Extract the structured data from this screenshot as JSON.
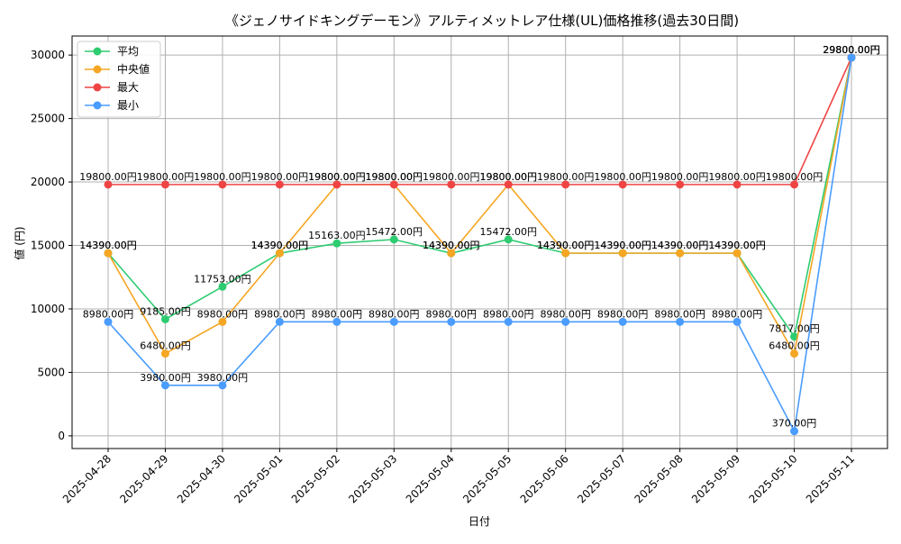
{
  "chart_data": {
    "type": "line",
    "title": "《ジェノサイドキングデーモン》アルティメットレア仕様(UL)価格推移(過去30日間)",
    "xlabel": "日付",
    "ylabel": "値 (円)",
    "ylim": [
      -1000,
      31500
    ],
    "yticks": [
      0,
      5000,
      10000,
      15000,
      20000,
      25000,
      30000
    ],
    "grid": true,
    "legend_position": "top-left",
    "categories": [
      "2025-04-28",
      "2025-04-29",
      "2025-04-30",
      "2025-05-01",
      "2025-05-02",
      "2025-05-03",
      "2025-05-04",
      "2025-05-05",
      "2025-05-06",
      "2025-05-07",
      "2025-05-08",
      "2025-05-09",
      "2025-05-10",
      "2025-05-11"
    ],
    "series": [
      {
        "name": "平均",
        "color": "#2ecc71",
        "values": [
          14390,
          9185,
          11753,
          14390,
          15163,
          15472,
          14390,
          15472,
          14390,
          14390,
          14390,
          14390,
          7817,
          29800
        ]
      },
      {
        "name": "中央値",
        "color": "#f5a623",
        "values": [
          14390,
          6480,
          8980,
          14390,
          19800,
          19800,
          14390,
          19800,
          14390,
          14390,
          14390,
          14390,
          6480,
          29800
        ]
      },
      {
        "name": "最大",
        "color": "#ef4444",
        "values": [
          19800,
          19800,
          19800,
          19800,
          19800,
          19800,
          19800,
          19800,
          19800,
          19800,
          19800,
          19800,
          19800,
          29800
        ]
      },
      {
        "name": "最小",
        "color": "#4a9cff",
        "values": [
          8980,
          3980,
          3980,
          8980,
          8980,
          8980,
          8980,
          8980,
          8980,
          8980,
          8980,
          8980,
          370,
          29800
        ]
      }
    ],
    "label_suffix": "円"
  }
}
